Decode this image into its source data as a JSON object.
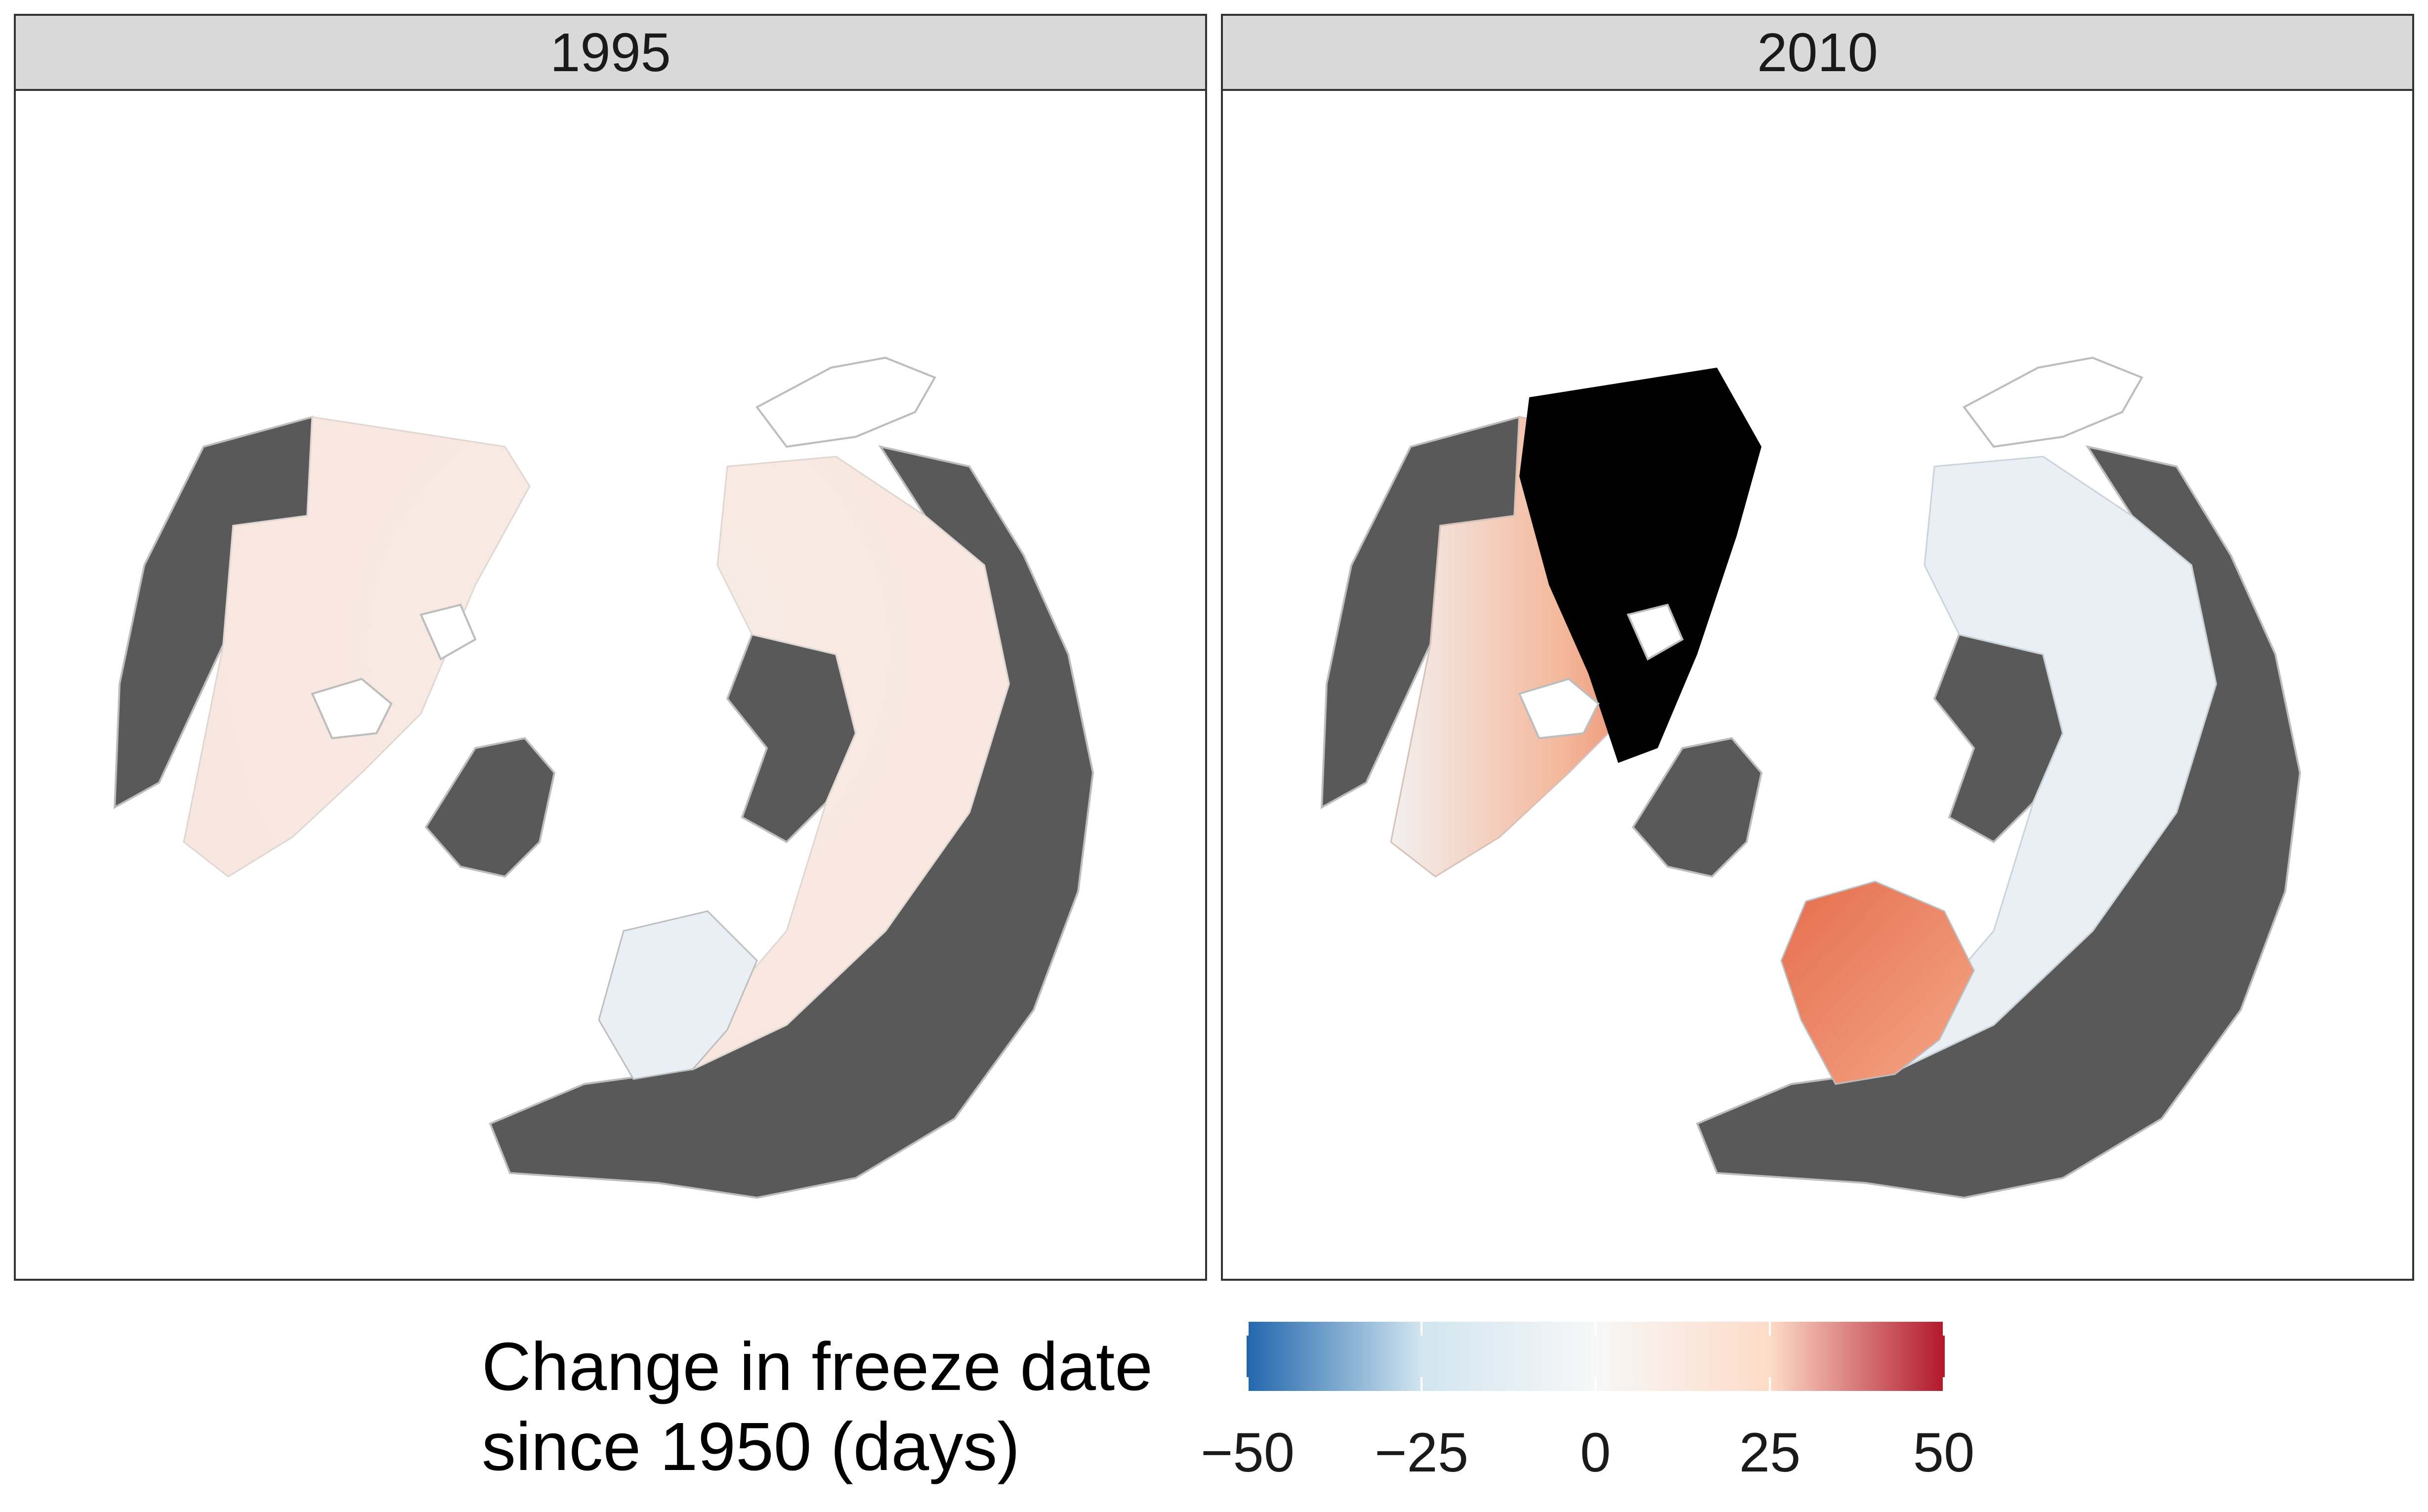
{
  "facets": [
    {
      "label": "1995"
    },
    {
      "label": "2010"
    }
  ],
  "legend": {
    "title_line1": "Change in freeze date",
    "title_line2": "since 1950 (days)",
    "ticks": [
      "−50",
      "−25",
      "0",
      "25",
      "50"
    ],
    "range": [
      -50,
      50
    ],
    "colors": {
      "low": "#2166ac",
      "mid_low": "#d1e5f0",
      "mid": "#f7f7f7",
      "mid_high": "#fddbc7",
      "high": "#b2182b"
    }
  },
  "map_colors": {
    "land_no_data": "#595959",
    "na_cells": "#000000",
    "borders": "#bdbdbd",
    "ocean": "#ffffff"
  }
}
